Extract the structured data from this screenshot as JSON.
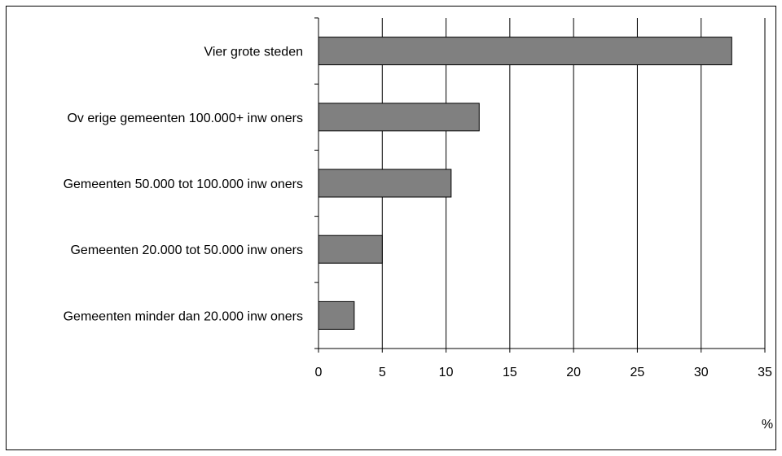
{
  "chart_data": {
    "type": "bar",
    "orientation": "horizontal",
    "categories": [
      "Vier grote steden",
      "Ov erige gemeenten 100.000+ inw oners",
      "Gemeenten 50.000 tot 100.000 inw oners",
      "Gemeenten 20.000 tot 50.000 inw oners",
      "Gemeenten minder dan 20.000 inw oners"
    ],
    "values": [
      32.4,
      12.6,
      10.4,
      5.0,
      2.8
    ],
    "xlim": [
      0,
      35
    ],
    "xticks": [
      "0",
      "5",
      "10",
      "15",
      "20",
      "25",
      "30",
      "35"
    ],
    "unit": "%",
    "grid": "vertical",
    "bar_color": "#808080",
    "legend": "none"
  }
}
